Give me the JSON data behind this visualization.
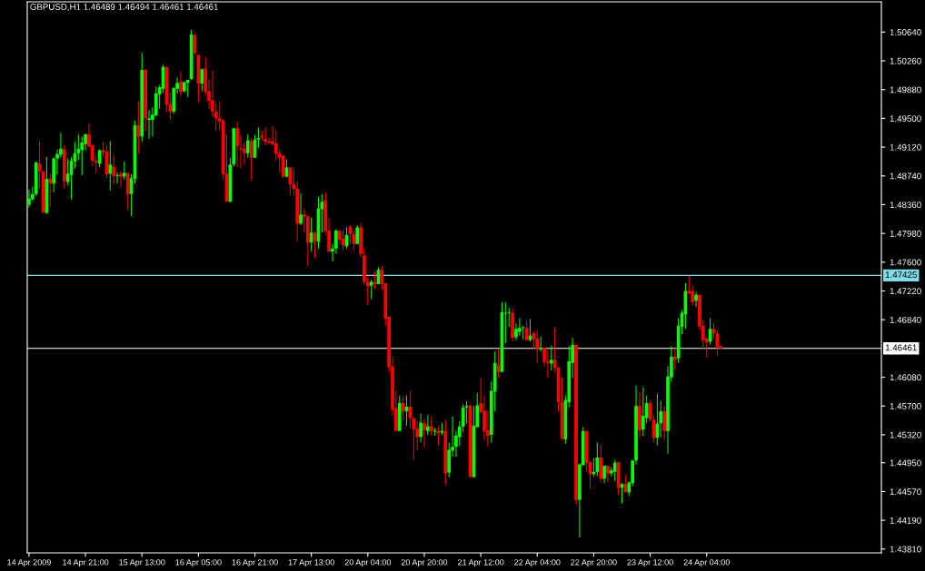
{
  "chart_data": {
    "type": "candlestick",
    "title": "GBPUSD,H1 1.46489 1.46494 1.46461 1.46461",
    "categories": [
      "14 Apr 2009",
      null,
      null,
      null,
      null,
      null,
      null,
      null,
      null,
      null,
      null,
      null,
      null,
      null,
      null,
      null,
      "14 Apr 21:00",
      null,
      null,
      null,
      null,
      null,
      null,
      null,
      null,
      null,
      null,
      null,
      null,
      null,
      null,
      null,
      "15 Apr 13:00",
      null,
      null,
      null,
      null,
      null,
      null,
      null,
      null,
      null,
      null,
      null,
      null,
      null,
      null,
      null,
      "16 Apr 05:00",
      null,
      null,
      null,
      null,
      null,
      null,
      null,
      null,
      null,
      null,
      null,
      null,
      null,
      null,
      null,
      "16 Apr 21:00",
      null,
      null,
      null,
      null,
      null,
      null,
      null,
      null,
      null,
      null,
      null,
      null,
      null,
      null,
      null,
      "17 Apr 13:00",
      null,
      null,
      null,
      null,
      null,
      null,
      null,
      null,
      null,
      null,
      null,
      null,
      null,
      null,
      null,
      "20 Apr 04:00",
      null,
      null,
      null,
      null,
      null,
      null,
      null,
      null,
      null,
      null,
      null,
      null,
      null,
      null,
      null,
      "20 Apr 20:00",
      null,
      null,
      null,
      null,
      null,
      null,
      null,
      null,
      null,
      null,
      null,
      null,
      null,
      null,
      null,
      "21 Apr 12:00",
      null,
      null,
      null,
      null,
      null,
      null,
      null,
      null,
      null,
      null,
      null,
      null,
      null,
      null,
      null,
      "22 Apr 04:00",
      null,
      null,
      null,
      null,
      null,
      null,
      null,
      null,
      null,
      null,
      null,
      null,
      null,
      null,
      null,
      "22 Apr 20:00",
      null,
      null,
      null,
      null,
      null,
      null,
      null,
      null,
      null,
      null,
      null,
      null,
      null,
      null,
      null,
      "23 Apr 12:00",
      null,
      null,
      null,
      null,
      null,
      null,
      null,
      null,
      null,
      null,
      null,
      null,
      null,
      null,
      null,
      "24 Apr 04:00",
      null,
      null,
      null,
      null,
      null,
      null,
      null,
      null,
      null,
      null,
      null,
      null,
      null,
      null,
      null,
      null,
      null,
      null,
      null,
      null,
      null,
      null,
      null,
      null,
      null,
      null,
      null,
      null,
      null,
      null,
      null,
      null,
      null,
      null,
      null,
      null,
      null,
      null,
      null,
      null,
      null,
      null,
      null,
      null,
      null,
      null,
      null,
      null,
      null
    ],
    "ohlc": [
      [
        1.4836,
        1.4856,
        1.4832,
        1.4844
      ],
      [
        1.4843,
        1.486,
        1.4841,
        1.485
      ],
      [
        1.485,
        1.4892,
        1.4847,
        1.4892
      ],
      [
        1.489,
        1.492,
        1.4858,
        1.488
      ],
      [
        1.488,
        1.488,
        1.4824,
        1.4826
      ],
      [
        1.4825,
        1.4899,
        1.4824,
        1.487
      ],
      [
        1.487,
        1.4877,
        1.4833,
        1.4864
      ],
      [
        1.4864,
        1.4899,
        1.4852,
        1.4897
      ],
      [
        1.4897,
        1.4909,
        1.4876,
        1.4903
      ],
      [
        1.4902,
        1.4931,
        1.4898,
        1.491
      ],
      [
        1.4909,
        1.4914,
        1.4858,
        1.4867
      ],
      [
        1.4866,
        1.4897,
        1.4861,
        1.4877
      ],
      [
        1.4875,
        1.4899,
        1.4843,
        1.4894
      ],
      [
        1.4893,
        1.4919,
        1.4884,
        1.4904
      ],
      [
        1.4904,
        1.4929,
        1.4895,
        1.491
      ],
      [
        1.4908,
        1.4926,
        1.4875,
        1.4918
      ],
      [
        1.4916,
        1.493,
        1.4908,
        1.4929
      ],
      [
        1.4929,
        1.4944,
        1.4911,
        1.4913
      ],
      [
        1.4915,
        1.4915,
        1.4887,
        1.4894
      ],
      [
        1.4894,
        1.4901,
        1.4878,
        1.4892
      ],
      [
        1.489,
        1.4909,
        1.4885,
        1.4908
      ],
      [
        1.4908,
        1.4919,
        1.4898,
        1.4905
      ],
      [
        1.4906,
        1.4914,
        1.4871,
        1.4876
      ],
      [
        1.4877,
        1.492,
        1.4855,
        1.4889
      ],
      [
        1.4886,
        1.4901,
        1.4863,
        1.4874
      ],
      [
        1.4874,
        1.4879,
        1.4864,
        1.4875
      ],
      [
        1.4877,
        1.488,
        1.4859,
        1.4873
      ],
      [
        1.4873,
        1.4893,
        1.4869,
        1.4878
      ],
      [
        1.4878,
        1.4878,
        1.483,
        1.485
      ],
      [
        1.485,
        1.4876,
        1.4821,
        1.4871
      ],
      [
        1.487,
        1.4947,
        1.4864,
        1.4941
      ],
      [
        1.4941,
        1.4973,
        1.4903,
        1.4926
      ],
      [
        1.4926,
        1.5037,
        1.4919,
        1.5014
      ],
      [
        1.5014,
        1.5015,
        1.4933,
        1.495
      ],
      [
        1.4948,
        1.4961,
        1.4923,
        1.495
      ],
      [
        1.4948,
        1.4965,
        1.4926,
        1.4955
      ],
      [
        1.4954,
        1.4992,
        1.4953,
        1.4983
      ],
      [
        1.4982,
        1.4994,
        1.4963,
        1.4991
      ],
      [
        1.4989,
        1.5021,
        1.4984,
        1.5018
      ],
      [
        1.5018,
        1.5018,
        1.4958,
        1.4968
      ],
      [
        1.4969,
        1.4984,
        1.4948,
        1.4959
      ],
      [
        1.4959,
        1.4991,
        1.4956,
        1.499
      ],
      [
        1.4989,
        1.5004,
        1.4983,
        1.4997
      ],
      [
        1.4998,
        1.5012,
        1.4979,
        1.4985
      ],
      [
        1.4986,
        1.4998,
        1.4984,
        1.4998
      ],
      [
        1.4997,
        1.5001,
        1.4978,
        1.5001
      ],
      [
        1.5002,
        1.5067,
        1.5001,
        1.5061
      ],
      [
        1.506,
        1.5062,
        1.5034,
        1.5036
      ],
      [
        1.5034,
        1.5034,
        1.4971,
        1.4996
      ],
      [
        1.4996,
        1.5016,
        1.4986,
        1.5015
      ],
      [
        1.5016,
        1.5031,
        1.498,
        1.4985
      ],
      [
        1.4986,
        1.5002,
        1.4963,
        1.4973
      ],
      [
        1.4974,
        1.5014,
        1.4952,
        1.4959
      ],
      [
        1.4959,
        1.4971,
        1.4933,
        1.495
      ],
      [
        1.495,
        1.4973,
        1.4935,
        1.4946
      ],
      [
        1.4947,
        1.4949,
        1.4869,
        1.4876
      ],
      [
        1.4877,
        1.4929,
        1.484,
        1.484
      ],
      [
        1.484,
        1.4898,
        1.4839,
        1.4889
      ],
      [
        1.4889,
        1.4937,
        1.4886,
        1.4937
      ],
      [
        1.4937,
        1.4946,
        1.4885,
        1.4913
      ],
      [
        1.4911,
        1.4928,
        1.4884,
        1.4909
      ],
      [
        1.491,
        1.4918,
        1.4889,
        1.4904
      ],
      [
        1.4904,
        1.4929,
        1.4898,
        1.4921
      ],
      [
        1.492,
        1.4923,
        1.4869,
        1.4898
      ],
      [
        1.4898,
        1.4928,
        1.4898,
        1.4922
      ],
      [
        1.4922,
        1.4938,
        1.4911,
        1.4924
      ],
      [
        1.4927,
        1.4934,
        1.492,
        1.4925
      ],
      [
        1.4923,
        1.4938,
        1.4915,
        1.4919
      ],
      [
        1.492,
        1.4925,
        1.4916,
        1.4918
      ],
      [
        1.492,
        1.494,
        1.4914,
        1.4916
      ],
      [
        1.4917,
        1.4935,
        1.4894,
        1.4903
      ],
      [
        1.4904,
        1.4909,
        1.4879,
        1.4898
      ],
      [
        1.4901,
        1.4901,
        1.4871,
        1.4873
      ],
      [
        1.4873,
        1.4896,
        1.4872,
        1.4885
      ],
      [
        1.4885,
        1.4885,
        1.4848,
        1.4863
      ],
      [
        1.4863,
        1.4884,
        1.4848,
        1.4857
      ],
      [
        1.4857,
        1.4867,
        1.4787,
        1.4811
      ],
      [
        1.4811,
        1.4851,
        1.4809,
        1.4823
      ],
      [
        1.4823,
        1.4831,
        1.4799,
        1.482
      ],
      [
        1.4821,
        1.4821,
        1.4755,
        1.4786
      ],
      [
        1.4786,
        1.4819,
        1.4774,
        1.4799
      ],
      [
        1.4799,
        1.4801,
        1.4766,
        1.4788
      ],
      [
        1.4787,
        1.4846,
        1.4778,
        1.4831
      ],
      [
        1.483,
        1.485,
        1.4799,
        1.484
      ],
      [
        1.4842,
        1.4852,
        1.4796,
        1.4801
      ],
      [
        1.4802,
        1.4818,
        1.4774,
        1.4774
      ],
      [
        1.4774,
        1.4784,
        1.4761,
        1.4778
      ],
      [
        1.4778,
        1.4803,
        1.4771,
        1.4802
      ],
      [
        1.4801,
        1.4803,
        1.4784,
        1.479
      ],
      [
        1.4791,
        1.4802,
        1.4776,
        1.4782
      ],
      [
        1.4781,
        1.4806,
        1.4778,
        1.4796
      ],
      [
        1.4807,
        1.4809,
        1.4784,
        1.4797
      ],
      [
        1.4797,
        1.4802,
        1.4775,
        1.4784
      ],
      [
        1.4784,
        1.4809,
        1.4784,
        1.4806
      ],
      [
        1.4806,
        1.4812,
        1.4767,
        1.4771
      ],
      [
        1.4769,
        1.4778,
        1.473,
        1.4734
      ],
      [
        1.4734,
        1.474,
        1.4704,
        1.4728
      ],
      [
        1.4729,
        1.4737,
        1.4711,
        1.4734
      ],
      [
        1.4734,
        1.4748,
        1.4725,
        1.4731
      ],
      [
        1.4731,
        1.4753,
        1.4731,
        1.475
      ],
      [
        1.475,
        1.4755,
        1.4724,
        1.4731
      ],
      [
        1.4732,
        1.4732,
        1.4676,
        1.4685
      ],
      [
        1.4688,
        1.4688,
        1.4615,
        1.4621
      ],
      [
        1.4622,
        1.4635,
        1.4557,
        1.4565
      ],
      [
        1.4567,
        1.459,
        1.4537,
        1.4537
      ],
      [
        1.4537,
        1.4584,
        1.4537,
        1.4574
      ],
      [
        1.4574,
        1.4582,
        1.4551,
        1.4563
      ],
      [
        1.4563,
        1.4584,
        1.4544,
        1.4569
      ],
      [
        1.4569,
        1.459,
        1.4541,
        1.4554
      ],
      [
        1.4554,
        1.4555,
        1.4499,
        1.4539
      ],
      [
        1.454,
        1.4549,
        1.4512,
        1.4529
      ],
      [
        1.4529,
        1.456,
        1.4522,
        1.4548
      ],
      [
        1.4547,
        1.4553,
        1.4515,
        1.4538
      ],
      [
        1.4537,
        1.4558,
        1.4532,
        1.4543
      ],
      [
        1.4543,
        1.4556,
        1.4532,
        1.4537
      ],
      [
        1.4537,
        1.4541,
        1.4531,
        1.4537
      ],
      [
        1.4537,
        1.4543,
        1.4518,
        1.4534
      ],
      [
        1.4535,
        1.4548,
        1.4532,
        1.4537
      ],
      [
        1.4537,
        1.4552,
        1.4467,
        1.4481
      ],
      [
        1.4482,
        1.4522,
        1.4476,
        1.4512
      ],
      [
        1.4511,
        1.4556,
        1.4503,
        1.4516
      ],
      [
        1.4516,
        1.4537,
        1.4503,
        1.4531
      ],
      [
        1.4529,
        1.455,
        1.4517,
        1.4543
      ],
      [
        1.4543,
        1.4572,
        1.4535,
        1.4568
      ],
      [
        1.4568,
        1.4576,
        1.4547,
        1.457
      ],
      [
        1.4571,
        1.4571,
        1.4476,
        1.4476
      ],
      [
        1.4476,
        1.457,
        1.4476,
        1.4544
      ],
      [
        1.4542,
        1.4587,
        1.4542,
        1.4571
      ],
      [
        1.4574,
        1.4608,
        1.456,
        1.4562
      ],
      [
        1.4564,
        1.4584,
        1.4525,
        1.4536
      ],
      [
        1.4538,
        1.4564,
        1.4516,
        1.4531
      ],
      [
        1.4532,
        1.4603,
        1.4522,
        1.459
      ],
      [
        1.4589,
        1.4642,
        1.4563,
        1.4627
      ],
      [
        1.4624,
        1.4646,
        1.4607,
        1.4615
      ],
      [
        1.4615,
        1.4707,
        1.4615,
        1.4694
      ],
      [
        1.4692,
        1.4707,
        1.4653,
        1.4693
      ],
      [
        1.4693,
        1.47,
        1.4674,
        1.4694
      ],
      [
        1.4693,
        1.4699,
        1.4655,
        1.466
      ],
      [
        1.4661,
        1.4679,
        1.4657,
        1.4672
      ],
      [
        1.4668,
        1.4686,
        1.4663,
        1.4673
      ],
      [
        1.4673,
        1.4676,
        1.4658,
        1.4674
      ],
      [
        1.4673,
        1.4682,
        1.4657,
        1.4657
      ],
      [
        1.4657,
        1.4685,
        1.4655,
        1.4663
      ],
      [
        1.4666,
        1.4668,
        1.4645,
        1.4658
      ],
      [
        1.4659,
        1.467,
        1.4627,
        1.4645
      ],
      [
        1.4645,
        1.4662,
        1.4642,
        1.4647
      ],
      [
        1.4647,
        1.4647,
        1.4622,
        1.4628
      ],
      [
        1.4629,
        1.4644,
        1.4607,
        1.4627
      ],
      [
        1.4626,
        1.465,
        1.4617,
        1.4631
      ],
      [
        1.4631,
        1.4673,
        1.4614,
        1.462
      ],
      [
        1.4621,
        1.4621,
        1.4563,
        1.4575
      ],
      [
        1.4575,
        1.4608,
        1.4525,
        1.4527
      ],
      [
        1.4526,
        1.4584,
        1.452,
        1.4578
      ],
      [
        1.4575,
        1.4649,
        1.4568,
        1.4629
      ],
      [
        1.4627,
        1.466,
        1.4607,
        1.4651
      ],
      [
        1.4651,
        1.4651,
        1.444,
        1.4446
      ],
      [
        1.4446,
        1.4494,
        1.4396,
        1.4493
      ],
      [
        1.4492,
        1.4542,
        1.4491,
        1.4537
      ],
      [
        1.4537,
        1.4537,
        1.4483,
        1.4495
      ],
      [
        1.4496,
        1.4497,
        1.4461,
        1.448
      ],
      [
        1.448,
        1.4501,
        1.4477,
        1.4483
      ],
      [
        1.4483,
        1.4522,
        1.4477,
        1.4502
      ],
      [
        1.4502,
        1.4519,
        1.4469,
        1.4474
      ],
      [
        1.4474,
        1.4491,
        1.4468,
        1.4491
      ],
      [
        1.4491,
        1.4491,
        1.4469,
        1.4481
      ],
      [
        1.4481,
        1.4489,
        1.4477,
        1.4485
      ],
      [
        1.4483,
        1.4499,
        1.4471,
        1.4495
      ],
      [
        1.4496,
        1.4496,
        1.4452,
        1.4462
      ],
      [
        1.4462,
        1.4468,
        1.4441,
        1.4467
      ],
      [
        1.4467,
        1.4479,
        1.4456,
        1.4456
      ],
      [
        1.4456,
        1.447,
        1.4451,
        1.4469
      ],
      [
        1.4468,
        1.4498,
        1.4464,
        1.4498
      ],
      [
        1.4498,
        1.4597,
        1.4493,
        1.457
      ],
      [
        1.457,
        1.4588,
        1.4527,
        1.4538
      ],
      [
        1.4539,
        1.4595,
        1.453,
        1.4557
      ],
      [
        1.4554,
        1.4584,
        1.4547,
        1.4574
      ],
      [
        1.4574,
        1.4578,
        1.4549,
        1.4552
      ],
      [
        1.4552,
        1.4558,
        1.4522,
        1.4528
      ],
      [
        1.4528,
        1.4586,
        1.4518,
        1.4547
      ],
      [
        1.4547,
        1.4577,
        1.4529,
        1.4563
      ],
      [
        1.4563,
        1.457,
        1.4525,
        1.4537
      ],
      [
        1.4537,
        1.4623,
        1.4507,
        1.4609
      ],
      [
        1.4608,
        1.4649,
        1.4602,
        1.4635
      ],
      [
        1.4635,
        1.4648,
        1.4618,
        1.4631
      ],
      [
        1.4633,
        1.4686,
        1.4627,
        1.4676
      ],
      [
        1.4675,
        1.4697,
        1.4665,
        1.4693
      ],
      [
        1.4691,
        1.4732,
        1.4672,
        1.4722
      ],
      [
        1.4722,
        1.4742,
        1.4717,
        1.4719
      ],
      [
        1.4722,
        1.4729,
        1.4703,
        1.4707
      ],
      [
        1.4709,
        1.4721,
        1.4701,
        1.4717
      ],
      [
        1.4717,
        1.4717,
        1.467,
        1.4675
      ],
      [
        1.4676,
        1.4684,
        1.4645,
        1.4657
      ],
      [
        1.4659,
        1.4662,
        1.4634,
        1.4654
      ],
      [
        1.4655,
        1.4686,
        1.4651,
        1.4672
      ],
      [
        1.4672,
        1.468,
        1.4658,
        1.4666
      ],
      [
        1.4666,
        1.467,
        1.4636,
        1.4648
      ],
      [
        1.46489,
        1.46494,
        1.46461,
        1.46461
      ],
      null,
      null,
      null,
      null,
      null,
      null,
      null,
      null,
      null,
      null,
      null,
      null,
      null,
      null,
      null,
      null,
      null,
      null,
      null,
      null,
      null,
      null,
      null,
      null,
      null,
      null,
      null,
      null,
      null,
      null,
      null,
      null,
      null,
      null,
      null,
      null,
      null,
      null,
      null,
      null,
      null,
      null,
      null,
      null,
      null
    ],
    "colors": [
      "#00ff00",
      "#00ff00",
      "#00ff00",
      "#ff0000",
      "#ff0000",
      "#00ff00",
      "#ff0000",
      "#00ff00",
      "#00ff00",
      "#00ff00",
      "#ff0000",
      "#00ff00",
      "#00ff00",
      "#00ff00",
      "#00ff00",
      "#00ff00",
      "#00ff00",
      "#ff0000",
      "#ff0000",
      "#ff0000",
      "#00ff00",
      "#ff0000",
      "#ff0000",
      "#00ff00",
      "#ff0000",
      "#00ff00",
      "#ff0000",
      "#00ff00",
      "#ff0000",
      "#00ff00",
      "#00ff00",
      "#ff0000",
      "#00ff00",
      "#ff0000",
      "#00ff00",
      "#00ff00",
      "#00ff00",
      "#00ff00",
      "#00ff00",
      "#ff0000",
      "#ff0000",
      "#00ff00",
      "#00ff00",
      "#ff0000",
      "#00ff00",
      "#00ff00",
      "#00ff00",
      "#ff0000",
      "#ff0000",
      "#00ff00",
      "#ff0000",
      "#ff0000",
      "#ff0000",
      "#ff0000",
      "#ff0000",
      "#ff0000",
      "#ff0000",
      "#00ff00",
      "#00ff00",
      "#ff0000",
      "#ff0000",
      "#ff0000",
      "#00ff00",
      "#ff0000",
      "#00ff00",
      "#00ff00",
      "#ff0000",
      "#ff0000",
      "#ff0000",
      "#ff0000",
      "#ff0000",
      "#ff0000",
      "#ff0000",
      "#00ff00",
      "#ff0000",
      "#ff0000",
      "#ff0000",
      "#00ff00",
      "#ff0000",
      "#ff0000",
      "#00ff00",
      "#ff0000",
      "#00ff00",
      "#00ff00",
      "#ff0000",
      "#ff0000",
      "#00ff00",
      "#00ff00",
      "#ff0000",
      "#ff0000",
      "#00ff00",
      "#ff0000",
      "#ff0000",
      "#00ff00",
      "#ff0000",
      "#ff0000",
      "#ff0000",
      "#00ff00",
      "#ff0000",
      "#00ff00",
      "#ff0000",
      "#ff0000",
      "#ff0000",
      "#ff0000",
      "#ff0000",
      "#00ff00",
      "#ff0000",
      "#00ff00",
      "#ff0000",
      "#ff0000",
      "#ff0000",
      "#00ff00",
      "#ff0000",
      "#00ff00",
      "#ff0000",
      "#00ff00",
      "#ff0000",
      "#00ff00",
      "#ff0000",
      "#00ff00",
      "#00ff00",
      "#00ff00",
      "#00ff00",
      "#00ff00",
      "#00ff00",
      "#ff0000",
      "#00ff00",
      "#00ff00",
      "#ff0000",
      "#ff0000",
      "#ff0000",
      "#00ff00",
      "#00ff00",
      "#ff0000",
      "#00ff00",
      "#00ff00",
      "#00ff00",
      "#ff0000",
      "#00ff00",
      "#00ff00",
      "#00ff00",
      "#ff0000",
      "#00ff00",
      "#ff0000",
      "#ff0000",
      "#00ff00",
      "#ff0000",
      "#ff0000",
      "#00ff00",
      "#ff0000",
      "#ff0000",
      "#ff0000",
      "#00ff00",
      "#00ff00",
      "#00ff00",
      "#ff0000",
      "#00ff00",
      "#00ff00",
      "#ff0000",
      "#ff0000",
      "#00ff00",
      "#00ff00",
      "#ff0000",
      "#00ff00",
      "#ff0000",
      "#00ff00",
      "#00ff00",
      "#ff0000",
      "#00ff00",
      "#ff0000",
      "#00ff00",
      "#00ff00",
      "#00ff00",
      "#ff0000",
      "#00ff00",
      "#00ff00",
      "#ff0000",
      "#ff0000",
      "#00ff00",
      "#00ff00",
      "#ff0000",
      "#00ff00",
      "#00ff00",
      "#ff0000",
      "#00ff00",
      "#00ff00",
      "#00ff00",
      "#ff0000",
      "#ff0000",
      "#00ff00",
      "#ff0000",
      "#ff0000",
      "#ff0000",
      "#00ff00",
      "#ff0000",
      "#ff0000",
      "#ff0000",
      null,
      null,
      null,
      null,
      null,
      null,
      null,
      null,
      null,
      null,
      null,
      null,
      null,
      null,
      null,
      null,
      null,
      null,
      null,
      null,
      null,
      null,
      null,
      null,
      null,
      null,
      null,
      null,
      null,
      null,
      null,
      null,
      null,
      null,
      null,
      null,
      null,
      null,
      null,
      null,
      null,
      null,
      null,
      null,
      null
    ],
    "ylim": [
      1.4376,
      1.5104
    ],
    "yticks": [
      {
        "value": 1.5064,
        "label": "1.50640"
      },
      {
        "value": 1.5026,
        "label": "1.50260"
      },
      {
        "value": 1.4988,
        "label": "1.49880"
      },
      {
        "value": 1.495,
        "label": "1.49500"
      },
      {
        "value": 1.4912,
        "label": "1.49120"
      },
      {
        "value": 1.4874,
        "label": "1.48740"
      },
      {
        "value": 1.4836,
        "label": "1.48360"
      },
      {
        "value": 1.4798,
        "label": "1.47980"
      },
      {
        "value": 1.476,
        "label": "1.47600"
      },
      {
        "value": 1.4722,
        "label": "1.47220"
      },
      {
        "value": 1.4684,
        "label": "1.46840"
      },
      {
        "value": 1.4608,
        "label": "1.46080"
      },
      {
        "value": 1.457,
        "label": "1.45700"
      },
      {
        "value": 1.4532,
        "label": "1.45320"
      },
      {
        "value": 1.4495,
        "label": "1.44950"
      },
      {
        "value": 1.4457,
        "label": "1.44570"
      },
      {
        "value": 1.4419,
        "label": "1.44190"
      },
      {
        "value": 1.4381,
        "label": "1.43810"
      }
    ],
    "ref_lines": [
      {
        "axis": "y",
        "value": 1.47425,
        "label": "1.47425",
        "color": "#7fdde8"
      },
      {
        "axis": "y",
        "value": 1.46461,
        "label": "1.46461",
        "color": "#ffffff"
      }
    ],
    "grid": false,
    "legend": false
  }
}
